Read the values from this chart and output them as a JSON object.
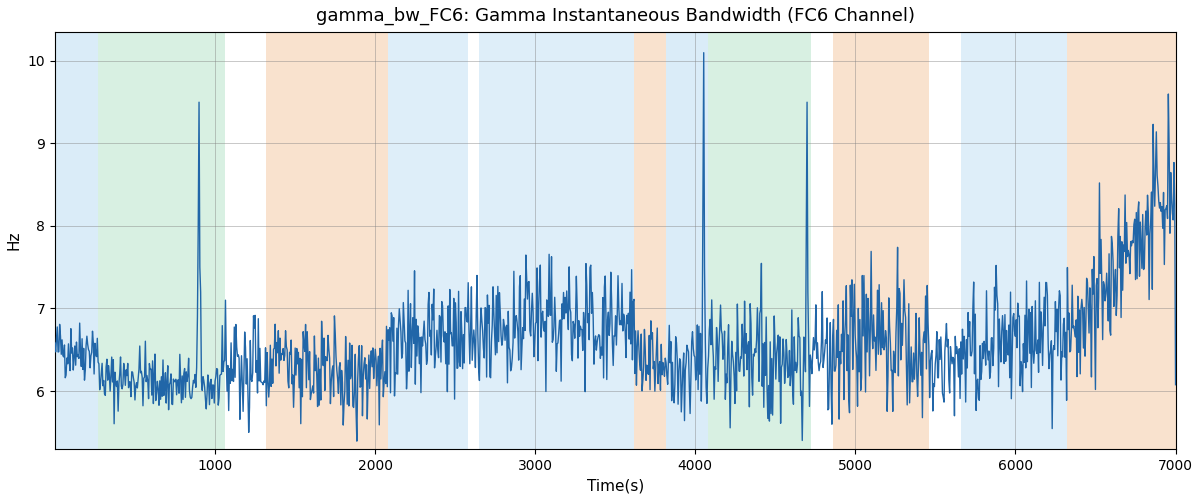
{
  "title": "gamma_bw_FC6: Gamma Instantaneous Bandwidth (FC6 Channel)",
  "xlabel": "Time(s)",
  "ylabel": "Hz",
  "xlim": [
    0,
    7000
  ],
  "ylim": [
    5.3,
    10.35
  ],
  "yticks": [
    6,
    7,
    8,
    9,
    10
  ],
  "xticks": [
    1000,
    2000,
    3000,
    4000,
    5000,
    6000,
    7000
  ],
  "line_color": "#2166a8",
  "line_width": 1.0,
  "background_regions": [
    {
      "xstart": 0,
      "xend": 270,
      "color": "#aed6f1",
      "alpha": 0.45
    },
    {
      "xstart": 270,
      "xend": 1060,
      "color": "#a9dfbf",
      "alpha": 0.45
    },
    {
      "xstart": 1060,
      "xend": 1320,
      "color": "#ffffff",
      "alpha": 0.0
    },
    {
      "xstart": 1320,
      "xend": 2080,
      "color": "#f5cba7",
      "alpha": 0.55
    },
    {
      "xstart": 2080,
      "xend": 2580,
      "color": "#aed6f1",
      "alpha": 0.4
    },
    {
      "xstart": 2580,
      "xend": 2650,
      "color": "#ffffff",
      "alpha": 0.0
    },
    {
      "xstart": 2650,
      "xend": 3620,
      "color": "#aed6f1",
      "alpha": 0.4
    },
    {
      "xstart": 3620,
      "xend": 3820,
      "color": "#f5cba7",
      "alpha": 0.55
    },
    {
      "xstart": 3820,
      "xend": 4080,
      "color": "#aed6f1",
      "alpha": 0.45
    },
    {
      "xstart": 4080,
      "xend": 4720,
      "color": "#a9dfbf",
      "alpha": 0.45
    },
    {
      "xstart": 4720,
      "xend": 4860,
      "color": "#ffffff",
      "alpha": 0.0
    },
    {
      "xstart": 4860,
      "xend": 5460,
      "color": "#f5cba7",
      "alpha": 0.55
    },
    {
      "xstart": 5460,
      "xend": 5660,
      "color": "#ffffff",
      "alpha": 0.0
    },
    {
      "xstart": 5660,
      "xend": 6320,
      "color": "#aed6f1",
      "alpha": 0.4
    },
    {
      "xstart": 6320,
      "xend": 7000,
      "color": "#f5cba7",
      "alpha": 0.55
    }
  ],
  "seed": 42
}
